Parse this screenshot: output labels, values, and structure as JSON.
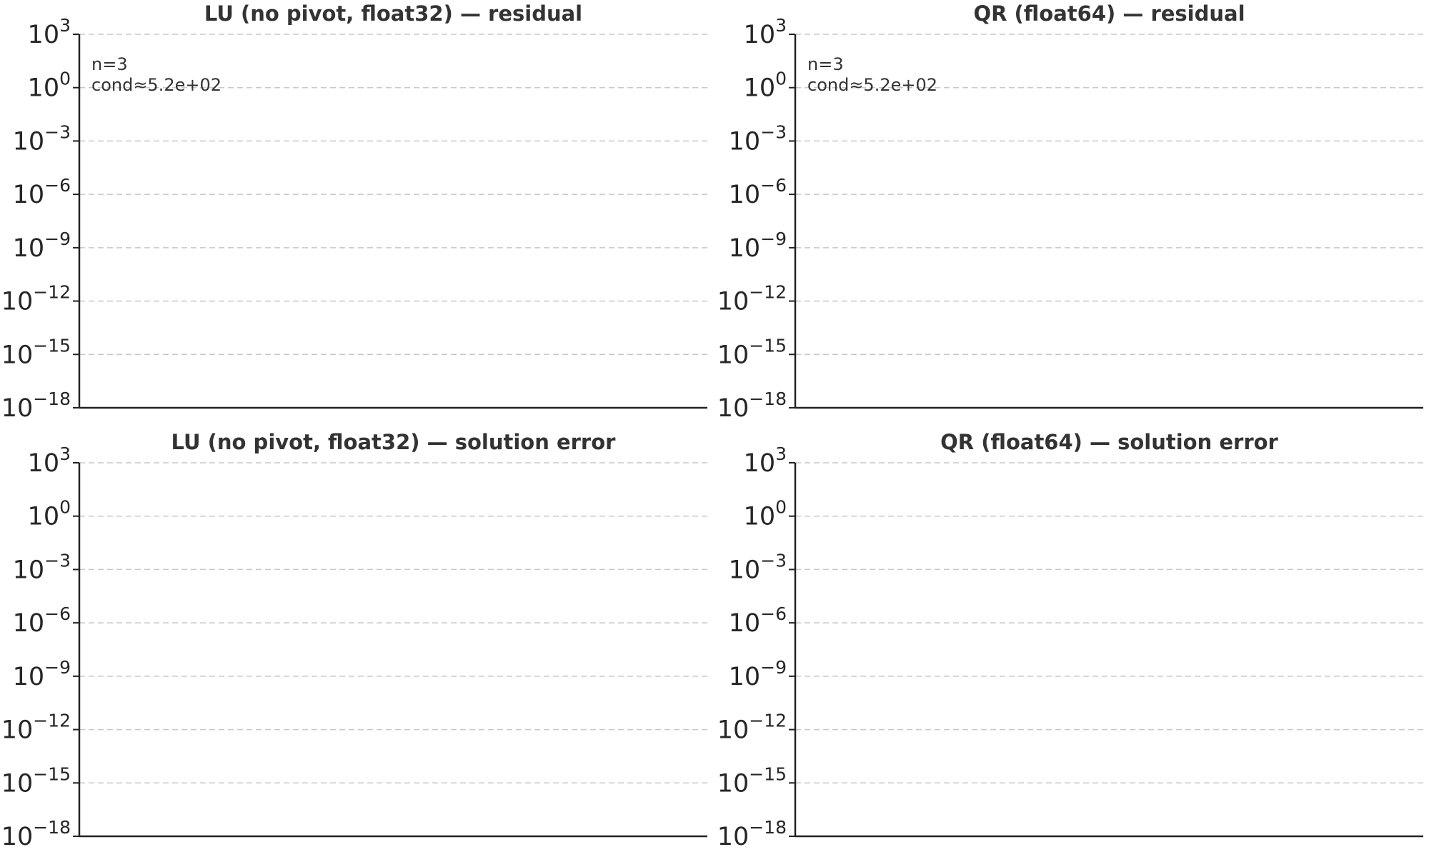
{
  "chart_data": [
    {
      "type": "line",
      "title": "LU (no pivot, float32) — residual",
      "yscale": "log",
      "ylim": [
        1e-18,
        1000
      ],
      "yticks": [
        {
          "base": "10",
          "exp": "3"
        },
        {
          "base": "10",
          "exp": "0"
        },
        {
          "base": "10",
          "exp": "−3"
        },
        {
          "base": "10",
          "exp": "−6"
        },
        {
          "base": "10",
          "exp": "−9"
        },
        {
          "base": "10",
          "exp": "−12"
        },
        {
          "base": "10",
          "exp": "−15"
        },
        {
          "base": "10",
          "exp": "−18"
        }
      ],
      "grid": true,
      "series": [],
      "annotations": [
        "n=3",
        "cond≈5.2e+02"
      ]
    },
    {
      "type": "line",
      "title": "QR (float64) — residual",
      "yscale": "log",
      "ylim": [
        1e-18,
        1000
      ],
      "yticks": [
        {
          "base": "10",
          "exp": "3"
        },
        {
          "base": "10",
          "exp": "0"
        },
        {
          "base": "10",
          "exp": "−3"
        },
        {
          "base": "10",
          "exp": "−6"
        },
        {
          "base": "10",
          "exp": "−9"
        },
        {
          "base": "10",
          "exp": "−12"
        },
        {
          "base": "10",
          "exp": "−15"
        },
        {
          "base": "10",
          "exp": "−18"
        }
      ],
      "grid": true,
      "series": [],
      "annotations": [
        "n=3",
        "cond≈5.2e+02"
      ]
    },
    {
      "type": "line",
      "title": "LU (no pivot, float32) — solution error",
      "yscale": "log",
      "ylim": [
        1e-18,
        1000
      ],
      "yticks": [
        {
          "base": "10",
          "exp": "3"
        },
        {
          "base": "10",
          "exp": "0"
        },
        {
          "base": "10",
          "exp": "−3"
        },
        {
          "base": "10",
          "exp": "−6"
        },
        {
          "base": "10",
          "exp": "−9"
        },
        {
          "base": "10",
          "exp": "−12"
        },
        {
          "base": "10",
          "exp": "−15"
        },
        {
          "base": "10",
          "exp": "−18"
        }
      ],
      "grid": true,
      "series": [],
      "annotations": []
    },
    {
      "type": "line",
      "title": "QR (float64) — solution error",
      "yscale": "log",
      "ylim": [
        1e-18,
        1000
      ],
      "yticks": [
        {
          "base": "10",
          "exp": "3"
        },
        {
          "base": "10",
          "exp": "0"
        },
        {
          "base": "10",
          "exp": "−3"
        },
        {
          "base": "10",
          "exp": "−6"
        },
        {
          "base": "10",
          "exp": "−9"
        },
        {
          "base": "10",
          "exp": "−12"
        },
        {
          "base": "10",
          "exp": "−15"
        },
        {
          "base": "10",
          "exp": "−18"
        }
      ],
      "grid": true,
      "series": [],
      "annotations": []
    }
  ]
}
